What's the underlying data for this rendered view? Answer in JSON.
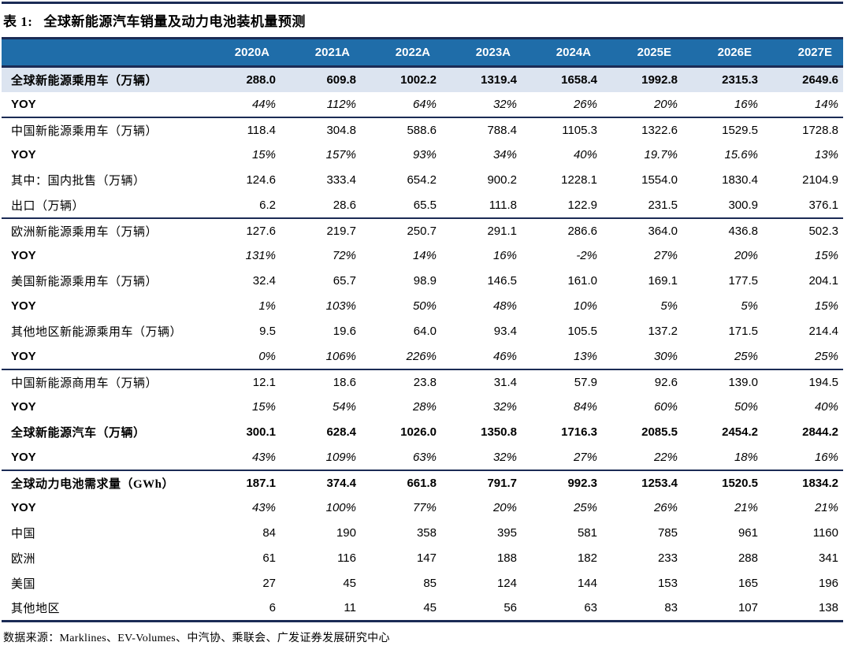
{
  "title": {
    "label": "表 1:",
    "text": "全球新能源汽车销量及动力电池装机量预测"
  },
  "footer": {
    "text": "数据来源：Marklines、EV-Volumes、中汽协、乘联会、广发证券发展研究中心"
  },
  "colors": {
    "header_bg": "#1f6da9",
    "header_text": "#ffffff",
    "section_line": "#1b2b55",
    "highlight_row_bg": "#dce4f0"
  },
  "table": {
    "columns": [
      "2020A",
      "2021A",
      "2022A",
      "2023A",
      "2024A",
      "2025E",
      "2026E",
      "2027E"
    ],
    "rows": [
      {
        "label": "全球新能源乘用车（万辆）",
        "values": [
          "288.0",
          "609.8",
          "1002.2",
          "1319.4",
          "1658.4",
          "1992.8",
          "2315.3",
          "2649.6"
        ],
        "highlight": true,
        "bold": true
      },
      {
        "label": "YOY",
        "values": [
          "44%",
          "112%",
          "64%",
          "32%",
          "26%",
          "20%",
          "16%",
          "14%"
        ],
        "yoy": true,
        "section_end": true
      },
      {
        "label": "中国新能源乘用车（万辆）",
        "values": [
          "118.4",
          "304.8",
          "588.6",
          "788.4",
          "1105.3",
          "1322.6",
          "1529.5",
          "1728.8"
        ]
      },
      {
        "label": "YOY",
        "values": [
          "15%",
          "157%",
          "93%",
          "34%",
          "40%",
          "19.7%",
          "15.6%",
          "13%"
        ],
        "yoy": true
      },
      {
        "label": "其中：国内批售（万辆）",
        "values": [
          "124.6",
          "333.4",
          "654.2",
          "900.2",
          "1228.1",
          "1554.0",
          "1830.4",
          "2104.9"
        ]
      },
      {
        "label": "出口（万辆）",
        "values": [
          "6.2",
          "28.6",
          "65.5",
          "111.8",
          "122.9",
          "231.5",
          "300.9",
          "376.1"
        ],
        "section_end": true
      },
      {
        "label": "欧洲新能源乘用车（万辆）",
        "values": [
          "127.6",
          "219.7",
          "250.7",
          "291.1",
          "286.6",
          "364.0",
          "436.8",
          "502.3"
        ]
      },
      {
        "label": "YOY",
        "values": [
          "131%",
          "72%",
          "14%",
          "16%",
          "-2%",
          "27%",
          "20%",
          "15%"
        ],
        "yoy": true
      },
      {
        "label": "美国新能源乘用车（万辆）",
        "values": [
          "32.4",
          "65.7",
          "98.9",
          "146.5",
          "161.0",
          "169.1",
          "177.5",
          "204.1"
        ]
      },
      {
        "label": "YOY",
        "values": [
          "1%",
          "103%",
          "50%",
          "48%",
          "10%",
          "5%",
          "5%",
          "15%"
        ],
        "yoy": true
      },
      {
        "label": "其他地区新能源乘用车（万辆）",
        "values": [
          "9.5",
          "19.6",
          "64.0",
          "93.4",
          "105.5",
          "137.2",
          "171.5",
          "214.4"
        ]
      },
      {
        "label": "YOY",
        "values": [
          "0%",
          "106%",
          "226%",
          "46%",
          "13%",
          "30%",
          "25%",
          "25%"
        ],
        "yoy": true,
        "section_end": true
      },
      {
        "label": "中国新能源商用车（万辆）",
        "values": [
          "12.1",
          "18.6",
          "23.8",
          "31.4",
          "57.9",
          "92.6",
          "139.0",
          "194.5"
        ]
      },
      {
        "label": "YOY",
        "values": [
          "15%",
          "54%",
          "28%",
          "32%",
          "84%",
          "60%",
          "50%",
          "40%"
        ],
        "yoy": true
      },
      {
        "label": "全球新能源汽车（万辆）",
        "values": [
          "300.1",
          "628.4",
          "1026.0",
          "1350.8",
          "1716.3",
          "2085.5",
          "2454.2",
          "2844.2"
        ],
        "bold": true
      },
      {
        "label": "YOY",
        "values": [
          "43%",
          "109%",
          "63%",
          "32%",
          "27%",
          "22%",
          "18%",
          "16%"
        ],
        "yoy": true,
        "section_end": true
      },
      {
        "label": "全球动力电池需求量（GWh）",
        "values": [
          "187.1",
          "374.4",
          "661.8",
          "791.7",
          "992.3",
          "1253.4",
          "1520.5",
          "1834.2"
        ],
        "bold": true
      },
      {
        "label": "YOY",
        "values": [
          "43%",
          "100%",
          "77%",
          "20%",
          "25%",
          "26%",
          "21%",
          "21%"
        ],
        "yoy": true
      },
      {
        "label": "中国",
        "values": [
          "84",
          "190",
          "358",
          "395",
          "581",
          "785",
          "961",
          "1160"
        ]
      },
      {
        "label": "欧洲",
        "values": [
          "61",
          "116",
          "147",
          "188",
          "182",
          "233",
          "288",
          "341"
        ]
      },
      {
        "label": "美国",
        "values": [
          "27",
          "45",
          "85",
          "124",
          "144",
          "153",
          "165",
          "196"
        ]
      },
      {
        "label": "其他地区",
        "values": [
          "6",
          "11",
          "45",
          "56",
          "63",
          "83",
          "107",
          "138"
        ]
      }
    ]
  }
}
